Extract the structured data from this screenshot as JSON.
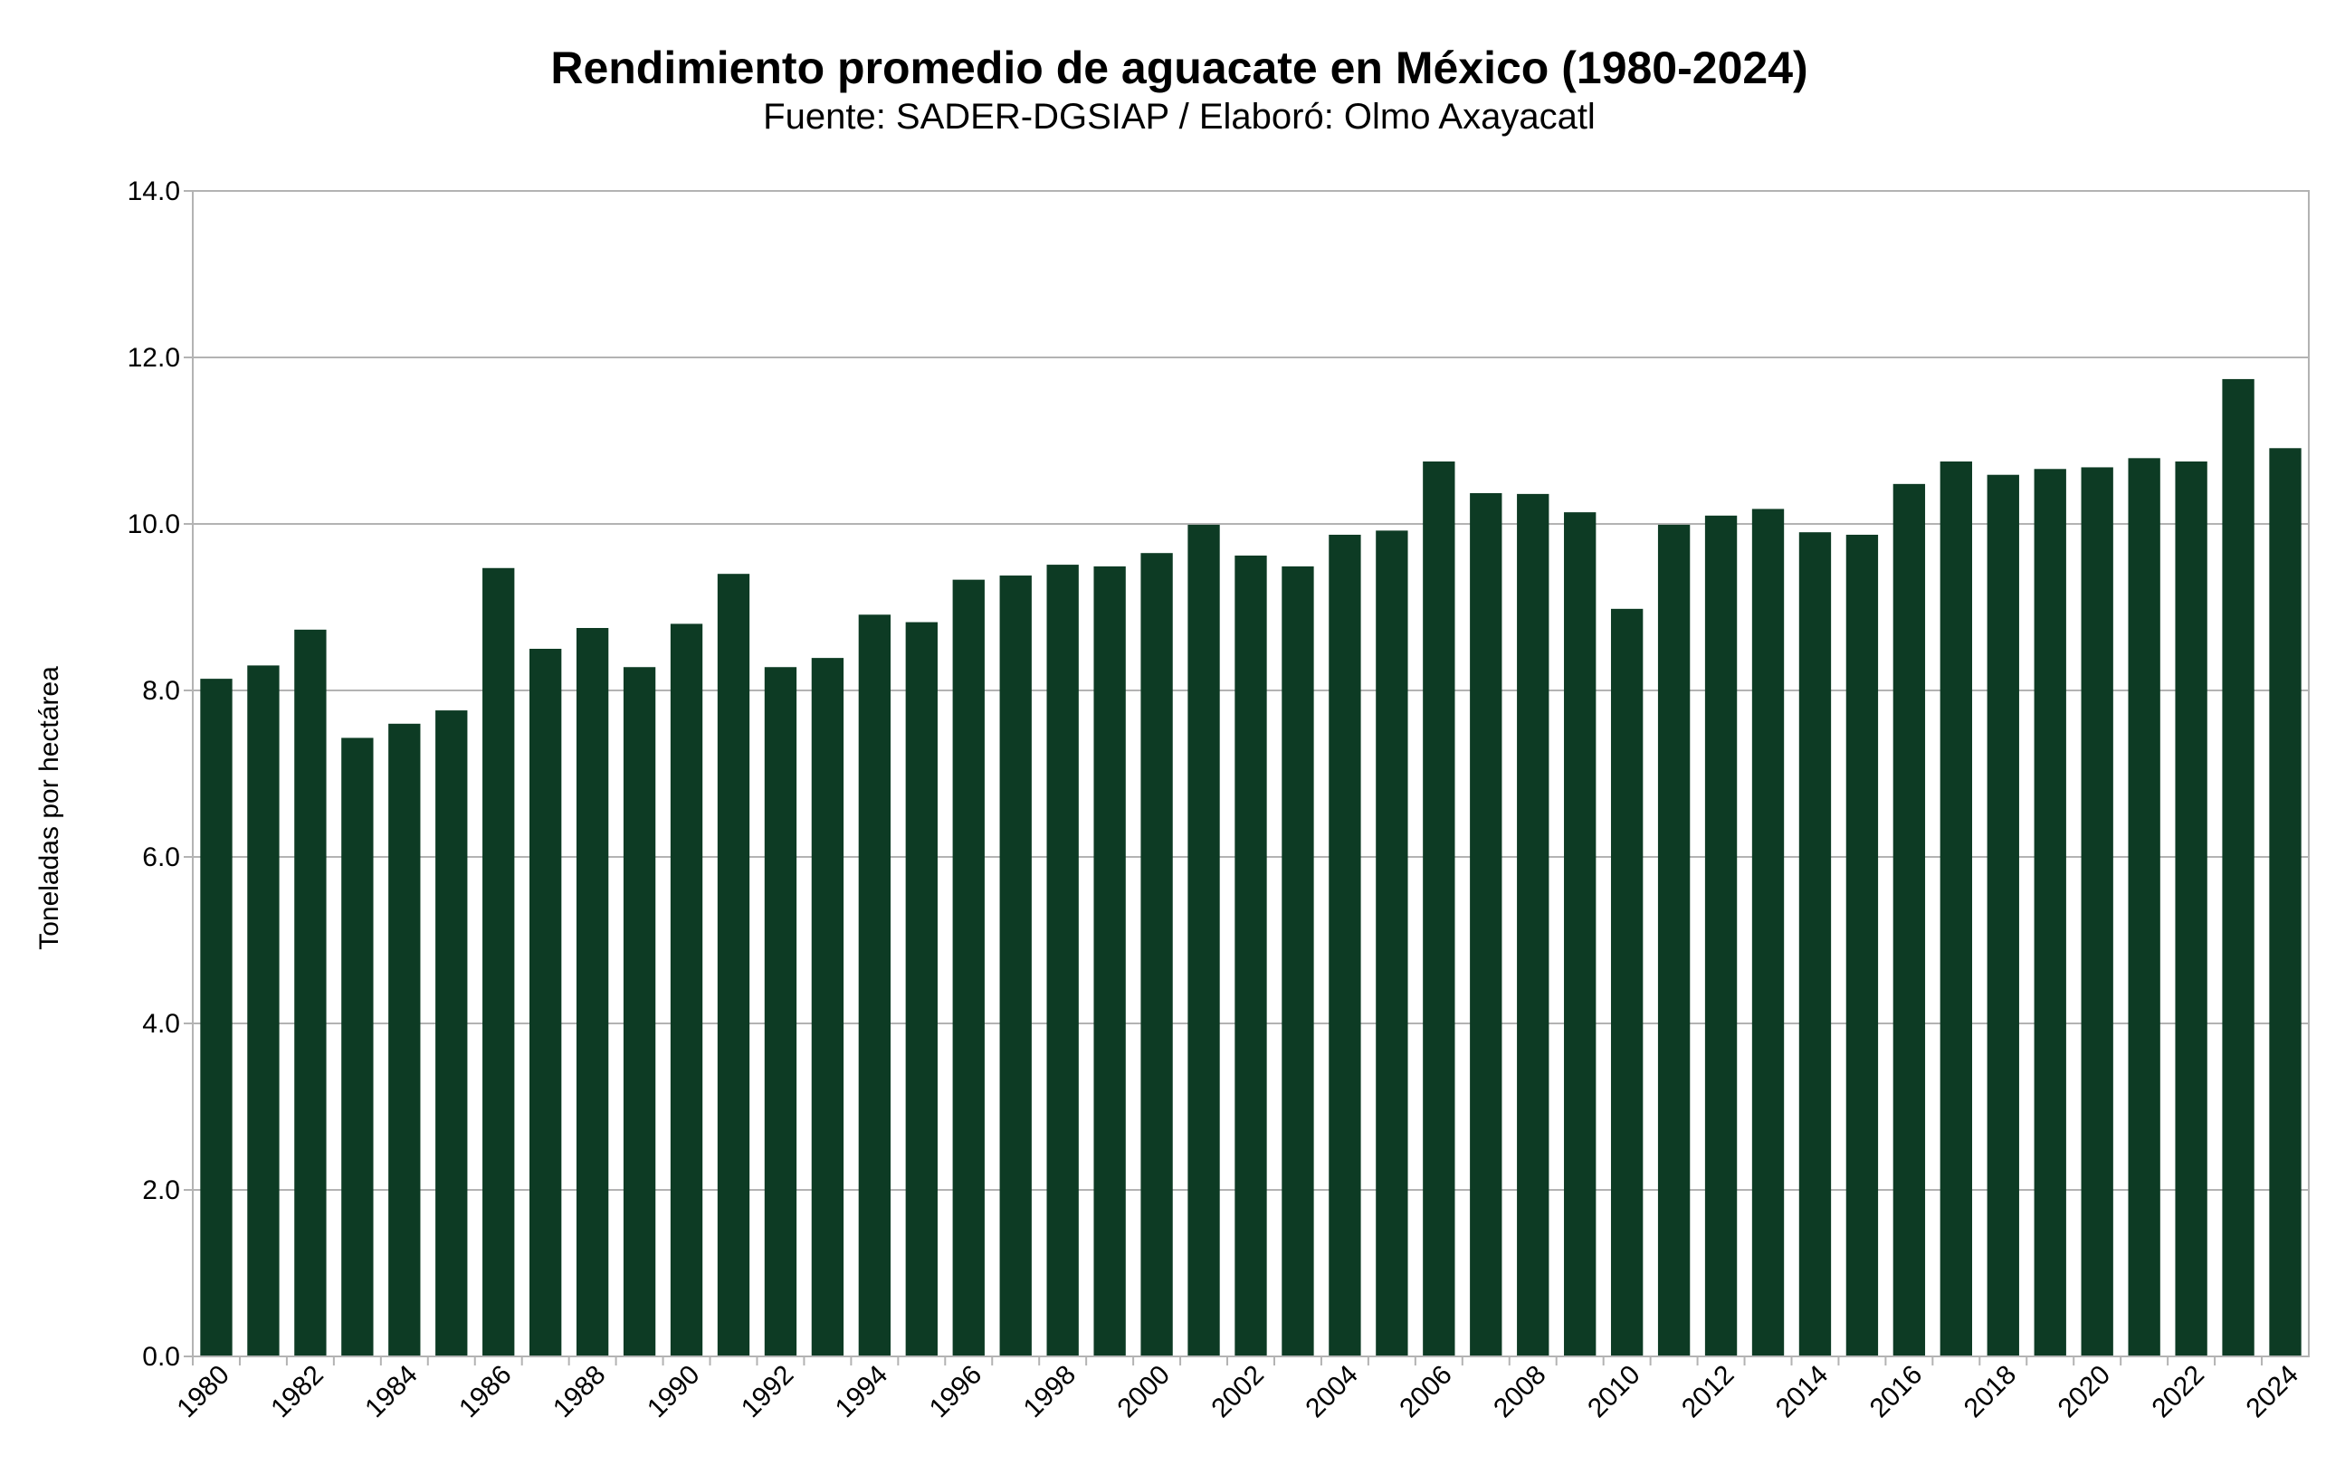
{
  "chart_data": {
    "type": "bar",
    "title": "Rendimiento promedio de aguacate en México (1980-2024)",
    "subtitle": "Fuente: SADER-DGSIAP / Elaboró: Olmo Axayacatl",
    "xlabel": "",
    "ylabel": "Toneladas por hectárea",
    "ylim": [
      0,
      14
    ],
    "yticks": [
      "0.0",
      "2.0",
      "4.0",
      "6.0",
      "8.0",
      "10.0",
      "12.0",
      "14.0"
    ],
    "grid": true,
    "bar_color": "#0d3b24",
    "categories": [
      "1980",
      "1981",
      "1982",
      "1983",
      "1984",
      "1985",
      "1986",
      "1987",
      "1988",
      "1989",
      "1990",
      "1991",
      "1992",
      "1993",
      "1994",
      "1995",
      "1996",
      "1997",
      "1998",
      "1999",
      "2000",
      "2001",
      "2002",
      "2003",
      "2004",
      "2005",
      "2006",
      "2007",
      "2008",
      "2009",
      "2010",
      "2011",
      "2012",
      "2013",
      "2014",
      "2015",
      "2016",
      "2017",
      "2018",
      "2019",
      "2020",
      "2021",
      "2022",
      "2023",
      "2024"
    ],
    "values": [
      8.14,
      8.3,
      8.73,
      7.43,
      7.6,
      7.76,
      9.47,
      8.5,
      8.75,
      8.28,
      8.8,
      9.4,
      8.28,
      8.39,
      8.91,
      8.82,
      9.33,
      9.38,
      9.51,
      9.49,
      9.65,
      9.99,
      9.62,
      9.49,
      9.87,
      9.92,
      10.75,
      10.37,
      10.36,
      10.14,
      8.98,
      9.99,
      10.1,
      10.18,
      9.9,
      9.87,
      10.48,
      10.75,
      10.59,
      10.66,
      10.68,
      10.79,
      10.75,
      11.74,
      10.91
    ]
  }
}
